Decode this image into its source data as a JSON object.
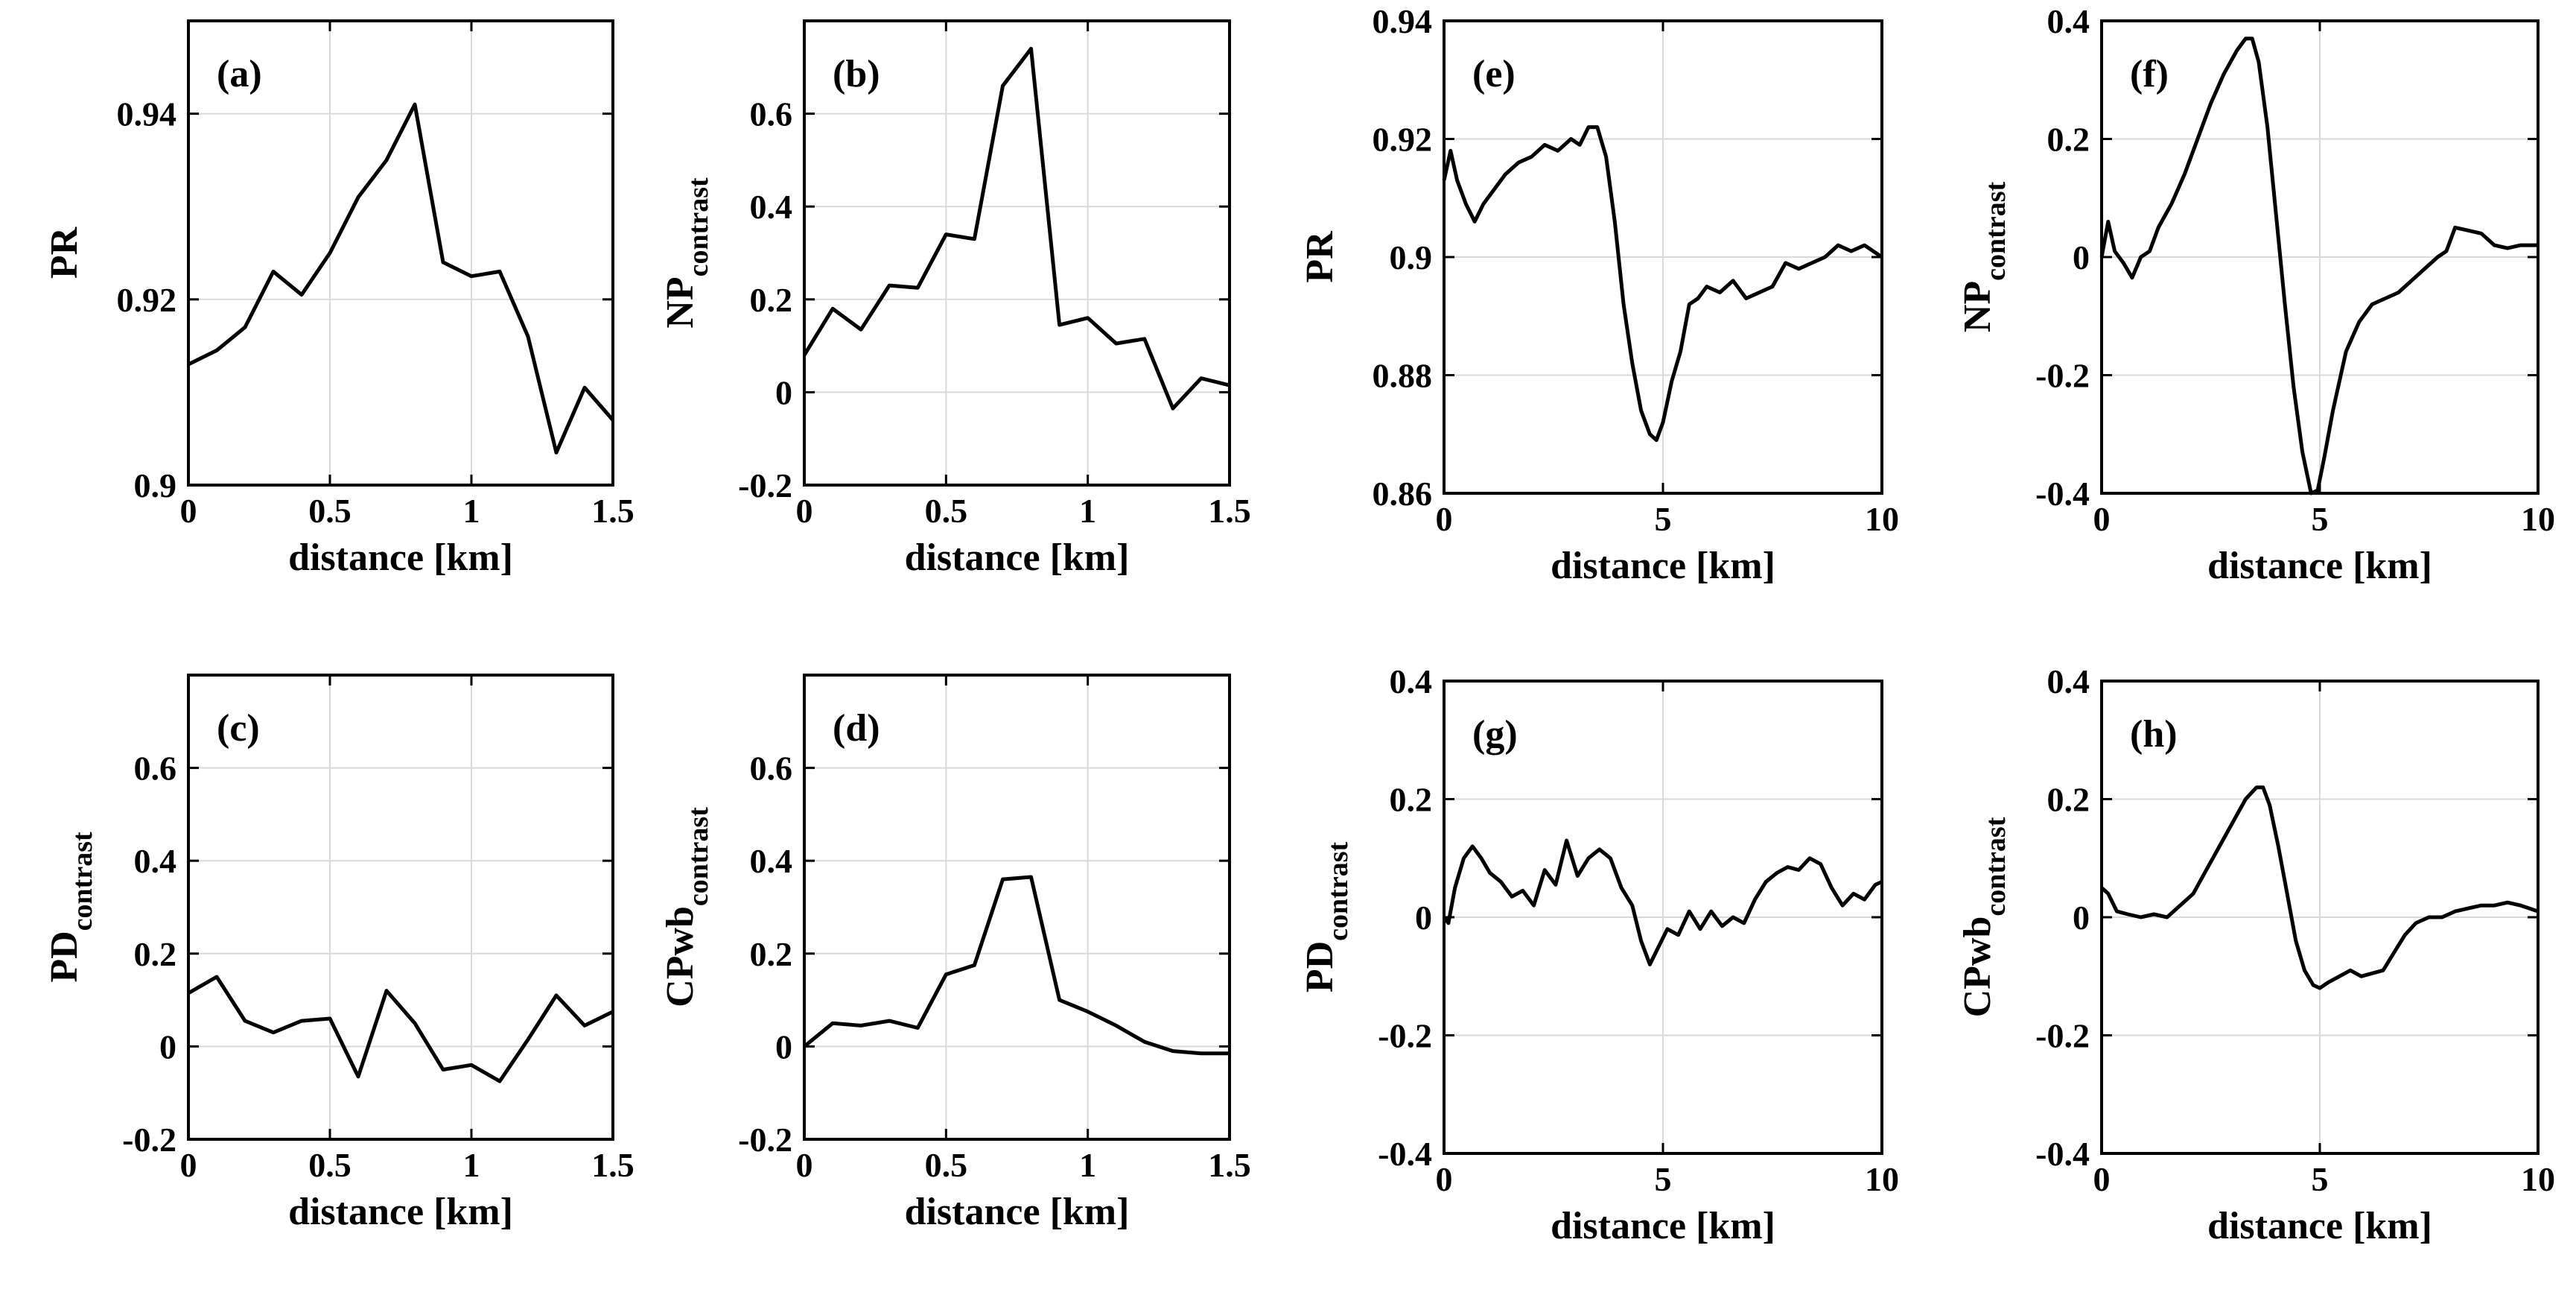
{
  "figure": {
    "background": "#ffffff",
    "line_color": "#000000",
    "grid_color": "#d9d9d9"
  },
  "chart_data": [
    {
      "id": "a",
      "tag": "(a)",
      "type": "line",
      "ylabel_main": "PR",
      "ylabel_sub": "",
      "xlabel": "distance [km]",
      "xlim": [
        0,
        1.5
      ],
      "ylim": [
        0.9,
        0.95
      ],
      "xticks": [
        0,
        0.5,
        1,
        1.5
      ],
      "xtick_labels": [
        "0",
        "0.5",
        "1",
        "1.5"
      ],
      "yticks": [
        0.9,
        0.92,
        0.94
      ],
      "ytick_labels": [
        "0.9",
        "0.92",
        "0.94"
      ],
      "grid": true,
      "x": [
        0,
        0.1,
        0.2,
        0.3,
        0.4,
        0.5,
        0.6,
        0.7,
        0.8,
        0.9,
        1.0,
        1.1,
        1.2,
        1.3,
        1.4,
        1.5
      ],
      "y": [
        0.913,
        0.9145,
        0.917,
        0.923,
        0.9205,
        0.925,
        0.931,
        0.935,
        0.941,
        0.924,
        0.9225,
        0.923,
        0.916,
        0.9035,
        0.9105,
        0.907
      ]
    },
    {
      "id": "b",
      "tag": "(b)",
      "type": "line",
      "ylabel_main": "NP",
      "ylabel_sub": "contrast",
      "xlabel": "distance [km]",
      "xlim": [
        0,
        1.5
      ],
      "ylim": [
        -0.2,
        0.8
      ],
      "xticks": [
        0,
        0.5,
        1,
        1.5
      ],
      "xtick_labels": [
        "0",
        "0.5",
        "1",
        "1.5"
      ],
      "yticks": [
        -0.2,
        0,
        0.2,
        0.4,
        0.6
      ],
      "ytick_labels": [
        "-0.2",
        "0",
        "0.2",
        "0.4",
        "0.6"
      ],
      "grid": true,
      "x": [
        0,
        0.1,
        0.2,
        0.3,
        0.4,
        0.5,
        0.6,
        0.7,
        0.8,
        0.9,
        1.0,
        1.1,
        1.2,
        1.3,
        1.4,
        1.5
      ],
      "y": [
        0.08,
        0.18,
        0.135,
        0.23,
        0.225,
        0.34,
        0.33,
        0.66,
        0.74,
        0.145,
        0.16,
        0.105,
        0.115,
        -0.035,
        0.03,
        0.015
      ]
    },
    {
      "id": "c",
      "tag": "(c)",
      "type": "line",
      "ylabel_main": "PD",
      "ylabel_sub": "contrast",
      "xlabel": "distance [km]",
      "xlim": [
        0,
        1.5
      ],
      "ylim": [
        -0.2,
        0.8
      ],
      "xticks": [
        0,
        0.5,
        1,
        1.5
      ],
      "xtick_labels": [
        "0",
        "0.5",
        "1",
        "1.5"
      ],
      "yticks": [
        -0.2,
        0,
        0.2,
        0.4,
        0.6
      ],
      "ytick_labels": [
        "-0.2",
        "0",
        "0.2",
        "0.4",
        "0.6"
      ],
      "grid": true,
      "x": [
        0,
        0.1,
        0.2,
        0.3,
        0.4,
        0.5,
        0.6,
        0.7,
        0.8,
        0.9,
        1.0,
        1.1,
        1.2,
        1.3,
        1.4,
        1.5
      ],
      "y": [
        0.115,
        0.15,
        0.055,
        0.03,
        0.055,
        0.06,
        -0.065,
        0.12,
        0.05,
        -0.05,
        -0.04,
        -0.075,
        0.015,
        0.11,
        0.045,
        0.075
      ]
    },
    {
      "id": "d",
      "tag": "(d)",
      "type": "line",
      "ylabel_main": "CPwb",
      "ylabel_sub": "contrast",
      "xlabel": "distance [km]",
      "xlim": [
        0,
        1.5
      ],
      "ylim": [
        -0.2,
        0.8
      ],
      "xticks": [
        0,
        0.5,
        1,
        1.5
      ],
      "xtick_labels": [
        "0",
        "0.5",
        "1",
        "1.5"
      ],
      "yticks": [
        -0.2,
        0,
        0.2,
        0.4,
        0.6
      ],
      "ytick_labels": [
        "-0.2",
        "0",
        "0.2",
        "0.4",
        "0.6"
      ],
      "grid": true,
      "x": [
        0,
        0.1,
        0.2,
        0.3,
        0.4,
        0.5,
        0.6,
        0.7,
        0.8,
        0.9,
        1.0,
        1.1,
        1.2,
        1.3,
        1.4,
        1.5
      ],
      "y": [
        0.0,
        0.05,
        0.045,
        0.055,
        0.04,
        0.155,
        0.175,
        0.36,
        0.365,
        0.1,
        0.075,
        0.045,
        0.01,
        -0.01,
        -0.015,
        -0.015
      ]
    },
    {
      "id": "e",
      "tag": "(e)",
      "type": "line",
      "ylabel_main": "PR",
      "ylabel_sub": "",
      "xlabel": "distance [km]",
      "xlim": [
        0,
        10
      ],
      "ylim": [
        0.86,
        0.94
      ],
      "xticks": [
        0,
        5,
        10
      ],
      "xtick_labels": [
        "0",
        "5",
        "10"
      ],
      "yticks": [
        0.86,
        0.88,
        0.9,
        0.92,
        0.94
      ],
      "ytick_labels": [
        "0.86",
        "0.88",
        "0.9",
        "0.92",
        "0.94"
      ],
      "grid": true,
      "x": [
        0,
        0.15,
        0.3,
        0.5,
        0.7,
        0.9,
        1.1,
        1.4,
        1.7,
        2.0,
        2.3,
        2.6,
        2.9,
        3.1,
        3.3,
        3.5,
        3.7,
        3.9,
        4.1,
        4.3,
        4.5,
        4.7,
        4.85,
        5.0,
        5.2,
        5.4,
        5.6,
        5.8,
        6.0,
        6.3,
        6.6,
        6.9,
        7.2,
        7.5,
        7.8,
        8.1,
        8.4,
        8.7,
        9.0,
        9.3,
        9.6,
        10.0
      ],
      "y": [
        0.913,
        0.918,
        0.913,
        0.909,
        0.906,
        0.909,
        0.911,
        0.914,
        0.916,
        0.917,
        0.919,
        0.918,
        0.92,
        0.919,
        0.922,
        0.922,
        0.917,
        0.906,
        0.892,
        0.882,
        0.874,
        0.87,
        0.869,
        0.872,
        0.879,
        0.884,
        0.892,
        0.893,
        0.895,
        0.894,
        0.896,
        0.893,
        0.894,
        0.895,
        0.899,
        0.898,
        0.899,
        0.9,
        0.902,
        0.901,
        0.902,
        0.9
      ]
    },
    {
      "id": "f",
      "tag": "(f)",
      "type": "line",
      "ylabel_main": "NP",
      "ylabel_sub": "contrast",
      "xlabel": "distance [km]",
      "xlim": [
        0,
        10
      ],
      "ylim": [
        -0.4,
        0.4
      ],
      "xticks": [
        0,
        5,
        10
      ],
      "xtick_labels": [
        "0",
        "5",
        "10"
      ],
      "yticks": [
        -0.4,
        -0.2,
        0,
        0.2,
        0.4
      ],
      "ytick_labels": [
        "-0.4",
        "-0.2",
        "0",
        "0.2",
        "0.4"
      ],
      "grid": true,
      "x": [
        0,
        0.15,
        0.3,
        0.5,
        0.7,
        0.9,
        1.1,
        1.3,
        1.6,
        1.9,
        2.2,
        2.5,
        2.8,
        3.1,
        3.3,
        3.45,
        3.6,
        3.8,
        4.0,
        4.2,
        4.4,
        4.6,
        4.8,
        4.95,
        5.1,
        5.3,
        5.6,
        5.9,
        6.2,
        6.5,
        6.8,
        7.1,
        7.4,
        7.7,
        7.9,
        8.1,
        8.4,
        8.7,
        9.0,
        9.3,
        9.6,
        10.0
      ],
      "y": [
        0.0,
        0.06,
        0.01,
        -0.01,
        -0.035,
        0.0,
        0.01,
        0.05,
        0.09,
        0.14,
        0.2,
        0.26,
        0.31,
        0.35,
        0.37,
        0.37,
        0.33,
        0.22,
        0.07,
        -0.08,
        -0.22,
        -0.33,
        -0.4,
        -0.395,
        -0.34,
        -0.26,
        -0.16,
        -0.11,
        -0.08,
        -0.07,
        -0.06,
        -0.04,
        -0.02,
        0.0,
        0.01,
        0.05,
        0.045,
        0.04,
        0.02,
        0.015,
        0.02,
        0.02
      ]
    },
    {
      "id": "g",
      "tag": "(g)",
      "type": "line",
      "ylabel_main": "PD",
      "ylabel_sub": "contrast",
      "xlabel": "distance [km]",
      "xlim": [
        0,
        10
      ],
      "ylim": [
        -0.4,
        0.4
      ],
      "xticks": [
        0,
        5,
        10
      ],
      "xtick_labels": [
        "0",
        "5",
        "10"
      ],
      "yticks": [
        -0.4,
        -0.2,
        0,
        0.2,
        0.4
      ],
      "ytick_labels": [
        "-0.4",
        "-0.2",
        "0",
        "0.2",
        "0.4"
      ],
      "grid": true,
      "x": [
        0,
        0.1,
        0.25,
        0.45,
        0.65,
        0.85,
        1.05,
        1.3,
        1.55,
        1.8,
        2.05,
        2.3,
        2.55,
        2.8,
        3.05,
        3.3,
        3.55,
        3.8,
        4.05,
        4.3,
        4.5,
        4.7,
        4.9,
        5.1,
        5.35,
        5.6,
        5.85,
        6.1,
        6.35,
        6.6,
        6.85,
        7.1,
        7.35,
        7.6,
        7.85,
        8.1,
        8.35,
        8.6,
        8.85,
        9.1,
        9.35,
        9.6,
        9.85,
        10.0
      ],
      "y": [
        0.0,
        -0.01,
        0.05,
        0.1,
        0.12,
        0.1,
        0.075,
        0.06,
        0.035,
        0.045,
        0.02,
        0.08,
        0.055,
        0.13,
        0.07,
        0.1,
        0.115,
        0.1,
        0.05,
        0.02,
        -0.04,
        -0.08,
        -0.05,
        -0.02,
        -0.03,
        0.01,
        -0.02,
        0.01,
        -0.015,
        0.0,
        -0.01,
        0.03,
        0.06,
        0.075,
        0.085,
        0.08,
        0.1,
        0.09,
        0.05,
        0.02,
        0.04,
        0.03,
        0.055,
        0.06
      ]
    },
    {
      "id": "h",
      "tag": "(h)",
      "type": "line",
      "ylabel_main": "CPwb",
      "ylabel_sub": "contrast",
      "xlabel": "distance [km]",
      "xlim": [
        0,
        10
      ],
      "ylim": [
        -0.4,
        0.4
      ],
      "xticks": [
        0,
        5,
        10
      ],
      "xtick_labels": [
        "0",
        "5",
        "10"
      ],
      "yticks": [
        -0.4,
        -0.2,
        0,
        0.2,
        0.4
      ],
      "ytick_labels": [
        "-0.4",
        "-0.2",
        "0",
        "0.2",
        "0.4"
      ],
      "grid": true,
      "x": [
        0,
        0.15,
        0.35,
        0.6,
        0.9,
        1.2,
        1.5,
        1.8,
        2.1,
        2.4,
        2.7,
        3.0,
        3.3,
        3.55,
        3.7,
        3.85,
        4.05,
        4.25,
        4.45,
        4.65,
        4.85,
        5.0,
        5.2,
        5.45,
        5.7,
        5.95,
        6.2,
        6.45,
        6.7,
        6.95,
        7.2,
        7.5,
        7.8,
        8.1,
        8.4,
        8.7,
        9.0,
        9.3,
        9.6,
        9.8,
        10.0
      ],
      "y": [
        0.05,
        0.04,
        0.01,
        0.005,
        0.0,
        0.005,
        0.0,
        0.02,
        0.04,
        0.08,
        0.12,
        0.16,
        0.2,
        0.22,
        0.22,
        0.19,
        0.12,
        0.04,
        -0.04,
        -0.09,
        -0.115,
        -0.12,
        -0.11,
        -0.1,
        -0.09,
        -0.1,
        -0.095,
        -0.09,
        -0.06,
        -0.03,
        -0.01,
        0.0,
        0.0,
        0.01,
        0.015,
        0.02,
        0.02,
        0.025,
        0.02,
        0.015,
        0.01
      ]
    }
  ]
}
